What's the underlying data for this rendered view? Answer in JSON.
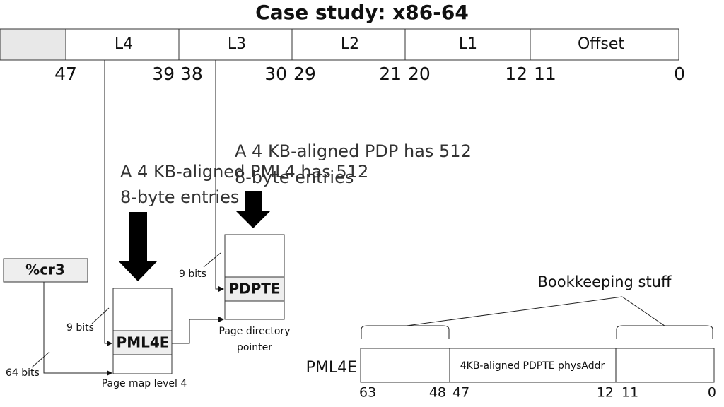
{
  "title": "Case study: x86-64",
  "address": {
    "fields": [
      "L4",
      "L3",
      "L2",
      "L1",
      "Offset"
    ],
    "bits": [
      47,
      39,
      38,
      30,
      29,
      21,
      20,
      12,
      11,
      0
    ]
  },
  "annotations": {
    "pml4": [
      "A 4 KB-aligned PML4 has 512",
      "8-byte entries"
    ],
    "pdp": [
      "A 4 KB-aligned PDP has 512",
      "8-byte entries"
    ]
  },
  "cr3": "%cr3",
  "bit_labels": [
    "9 bits",
    "9 bits",
    "64 bits"
  ],
  "tables": {
    "pml4": {
      "entry": "PML4E",
      "caption": "Page map level 4"
    },
    "pdp": {
      "entry": "PDPTE",
      "caption": [
        "Page directory",
        "pointer"
      ]
    }
  },
  "entry": {
    "label": "PML4E",
    "field": "4KB-aligned PDPTE physAddr",
    "bookkeeping": "Bookkeeping stuff",
    "bits": [
      63,
      48,
      47,
      12,
      11,
      0
    ]
  }
}
